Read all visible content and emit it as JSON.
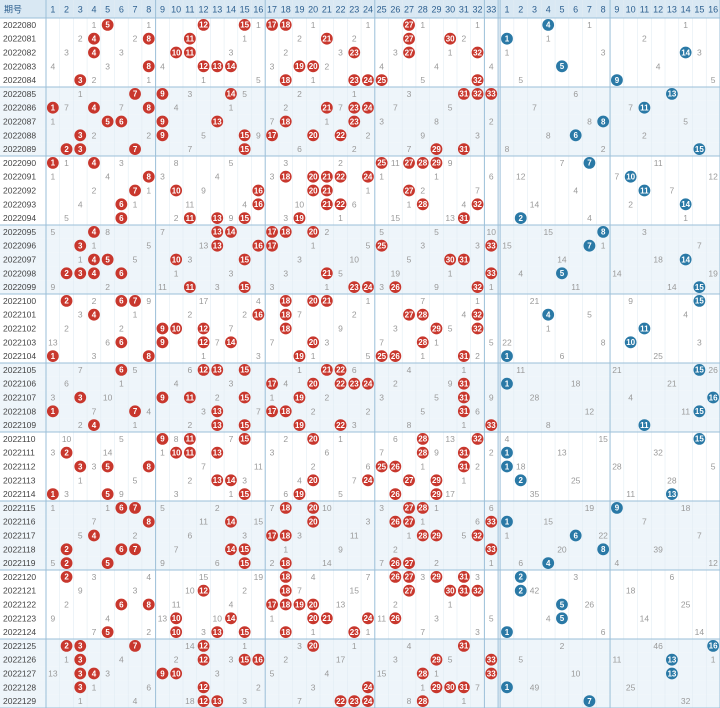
{
  "chart_data": {
    "type": "table",
    "header": {
      "period_label": "期号",
      "red_columns": [
        "1",
        "2",
        "3",
        "4",
        "5",
        "6",
        "7",
        "8",
        "9",
        "10",
        "11",
        "12",
        "13",
        "14",
        "15",
        "16",
        "17",
        "18",
        "19",
        "20",
        "21",
        "22",
        "23",
        "24",
        "25",
        "26",
        "27",
        "28",
        "29",
        "30",
        "31",
        "32",
        "33"
      ],
      "blue_columns": [
        "1",
        "2",
        "3",
        "4",
        "5",
        "6",
        "7",
        "8",
        "9",
        "10",
        "11",
        "12",
        "13",
        "14",
        "15",
        "16"
      ]
    },
    "colors": {
      "red_ball": "#c8372d",
      "blue_ball": "#2a79a6",
      "header_bg": "#d9e8f3",
      "row_alt": "#eef5fa",
      "divider": "#9bbfd8"
    },
    "rows": [
      {
        "period": "2022080",
        "red": [
          5,
          12,
          15,
          17,
          18,
          27
        ],
        "blue": 4
      },
      {
        "period": "2022081",
        "red": [
          4,
          8,
          11,
          21,
          27,
          30
        ],
        "blue": 1
      },
      {
        "period": "2022082",
        "red": [
          4,
          10,
          11,
          23,
          27,
          32
        ],
        "blue": 14
      },
      {
        "period": "2022083",
        "red": [
          8,
          12,
          13,
          14,
          19,
          20
        ],
        "blue": 5
      },
      {
        "period": "2022084",
        "red": [
          3,
          18,
          23,
          24,
          25,
          32
        ],
        "blue": 9
      },
      {
        "period": "2022085",
        "red": [
          7,
          9,
          14,
          31,
          32,
          33
        ],
        "blue": 13
      },
      {
        "period": "2022086",
        "red": [
          1,
          4,
          8,
          21,
          23,
          24
        ],
        "blue": 11
      },
      {
        "period": "2022087",
        "red": [
          5,
          6,
          9,
          13,
          18,
          23
        ],
        "blue": 8
      },
      {
        "period": "2022088",
        "red": [
          3,
          9,
          15,
          17,
          20,
          22
        ],
        "blue": 6
      },
      {
        "period": "2022089",
        "red": [
          2,
          3,
          7,
          15,
          29,
          31
        ],
        "blue": 15
      },
      {
        "period": "2022090",
        "red": [
          1,
          4,
          25,
          27,
          28,
          29
        ],
        "blue": 7
      },
      {
        "period": "2022091",
        "red": [
          8,
          18,
          20,
          21,
          22,
          24
        ],
        "blue": 10
      },
      {
        "period": "2022092",
        "red": [
          7,
          10,
          16,
          20,
          21,
          27
        ],
        "blue": 11
      },
      {
        "period": "2022093",
        "red": [
          6,
          16,
          21,
          22,
          28,
          32
        ],
        "blue": 14
      },
      {
        "period": "2022094",
        "red": [
          6,
          11,
          13,
          15,
          19,
          31
        ],
        "blue": 2
      },
      {
        "period": "2022095",
        "red": [
          4,
          13,
          14,
          17,
          18,
          20
        ],
        "blue": 8
      },
      {
        "period": "2022096",
        "red": [
          3,
          13,
          16,
          17,
          25,
          33
        ],
        "blue": 7
      },
      {
        "period": "2022097",
        "red": [
          4,
          5,
          10,
          15,
          30,
          31
        ],
        "blue": 14
      },
      {
        "period": "2022098",
        "red": [
          2,
          3,
          4,
          6,
          21,
          33
        ],
        "blue": 5
      },
      {
        "period": "2022099",
        "red": [
          11,
          15,
          23,
          24,
          26,
          32
        ],
        "blue": 15
      },
      {
        "period": "2022100",
        "red": [
          2,
          6,
          7,
          18,
          20,
          21
        ],
        "blue": 15
      },
      {
        "period": "2022101",
        "red": [
          4,
          16,
          18,
          27,
          28,
          32
        ],
        "blue": 4
      },
      {
        "period": "2022102",
        "red": [
          9,
          10,
          12,
          18,
          29,
          32
        ],
        "blue": 11
      },
      {
        "period": "2022103",
        "red": [
          6,
          9,
          12,
          14,
          20,
          28
        ],
        "blue": 10
      },
      {
        "period": "2022104",
        "red": [
          1,
          8,
          19,
          25,
          26,
          31
        ],
        "blue": 1
      },
      {
        "period": "2022105",
        "red": [
          6,
          12,
          13,
          15,
          21,
          22
        ],
        "blue": 15
      },
      {
        "period": "2022106",
        "red": [
          17,
          20,
          22,
          23,
          24,
          31
        ],
        "blue": 1
      },
      {
        "period": "2022107",
        "red": [
          3,
          9,
          11,
          15,
          19,
          31
        ],
        "blue": 16
      },
      {
        "period": "2022108",
        "red": [
          1,
          7,
          13,
          17,
          18,
          31
        ],
        "blue": 15
      },
      {
        "period": "2022109",
        "red": [
          4,
          13,
          15,
          19,
          22,
          33
        ],
        "blue": 11
      },
      {
        "period": "2022110",
        "red": [
          9,
          11,
          15,
          20,
          28,
          32
        ],
        "blue": 15
      },
      {
        "period": "2022111",
        "red": [
          2,
          10,
          11,
          13,
          28,
          31
        ],
        "blue": 1
      },
      {
        "period": "2022112",
        "red": [
          3,
          5,
          8,
          25,
          26,
          31
        ],
        "blue": 1
      },
      {
        "period": "2022113",
        "red": [
          13,
          14,
          20,
          24,
          27,
          29
        ],
        "blue": 2
      },
      {
        "period": "2022114",
        "red": [
          1,
          5,
          15,
          19,
          26,
          29
        ],
        "blue": 13
      },
      {
        "period": "2022115",
        "red": [
          6,
          7,
          18,
          20,
          27,
          28
        ],
        "blue": 9
      },
      {
        "period": "2022116",
        "red": [
          8,
          14,
          20,
          26,
          27,
          33
        ],
        "blue": 1
      },
      {
        "period": "2022117",
        "red": [
          4,
          17,
          18,
          28,
          29,
          32
        ],
        "blue": 6
      },
      {
        "period": "2022118",
        "red": [
          2,
          6,
          7,
          14,
          15,
          33
        ],
        "blue": 8
      },
      {
        "period": "2022119",
        "red": [
          2,
          5,
          15,
          18,
          26,
          27
        ],
        "blue": 4
      },
      {
        "period": "2022120",
        "red": [
          2,
          18,
          26,
          27,
          29,
          31
        ],
        "blue": 2
      },
      {
        "period": "2022121",
        "red": [
          12,
          18,
          27,
          30,
          31,
          32
        ],
        "blue": 2
      },
      {
        "period": "2022122",
        "red": [
          6,
          8,
          17,
          18,
          19,
          20
        ],
        "blue": 5
      },
      {
        "period": "2022123",
        "red": [
          10,
          14,
          20,
          21,
          24,
          26
        ],
        "blue": 5
      },
      {
        "period": "2022124",
        "red": [
          5,
          10,
          13,
          15,
          18,
          23
        ],
        "blue": 1
      },
      {
        "period": "2022125",
        "red": [
          2,
          3,
          7,
          12,
          20,
          31
        ],
        "blue": 16
      },
      {
        "period": "2022126",
        "red": [
          3,
          12,
          15,
          16,
          29,
          33
        ],
        "blue": 13
      },
      {
        "period": "2022127",
        "red": [
          3,
          4,
          9,
          10,
          28,
          33
        ],
        "blue": 13
      },
      {
        "period": "2022128",
        "red": [
          3,
          12,
          24,
          29,
          30,
          31
        ],
        "blue": 1
      },
      {
        "period": "2022129",
        "red": [
          12,
          13,
          22,
          23,
          24,
          28
        ],
        "blue": 7
      }
    ]
  }
}
